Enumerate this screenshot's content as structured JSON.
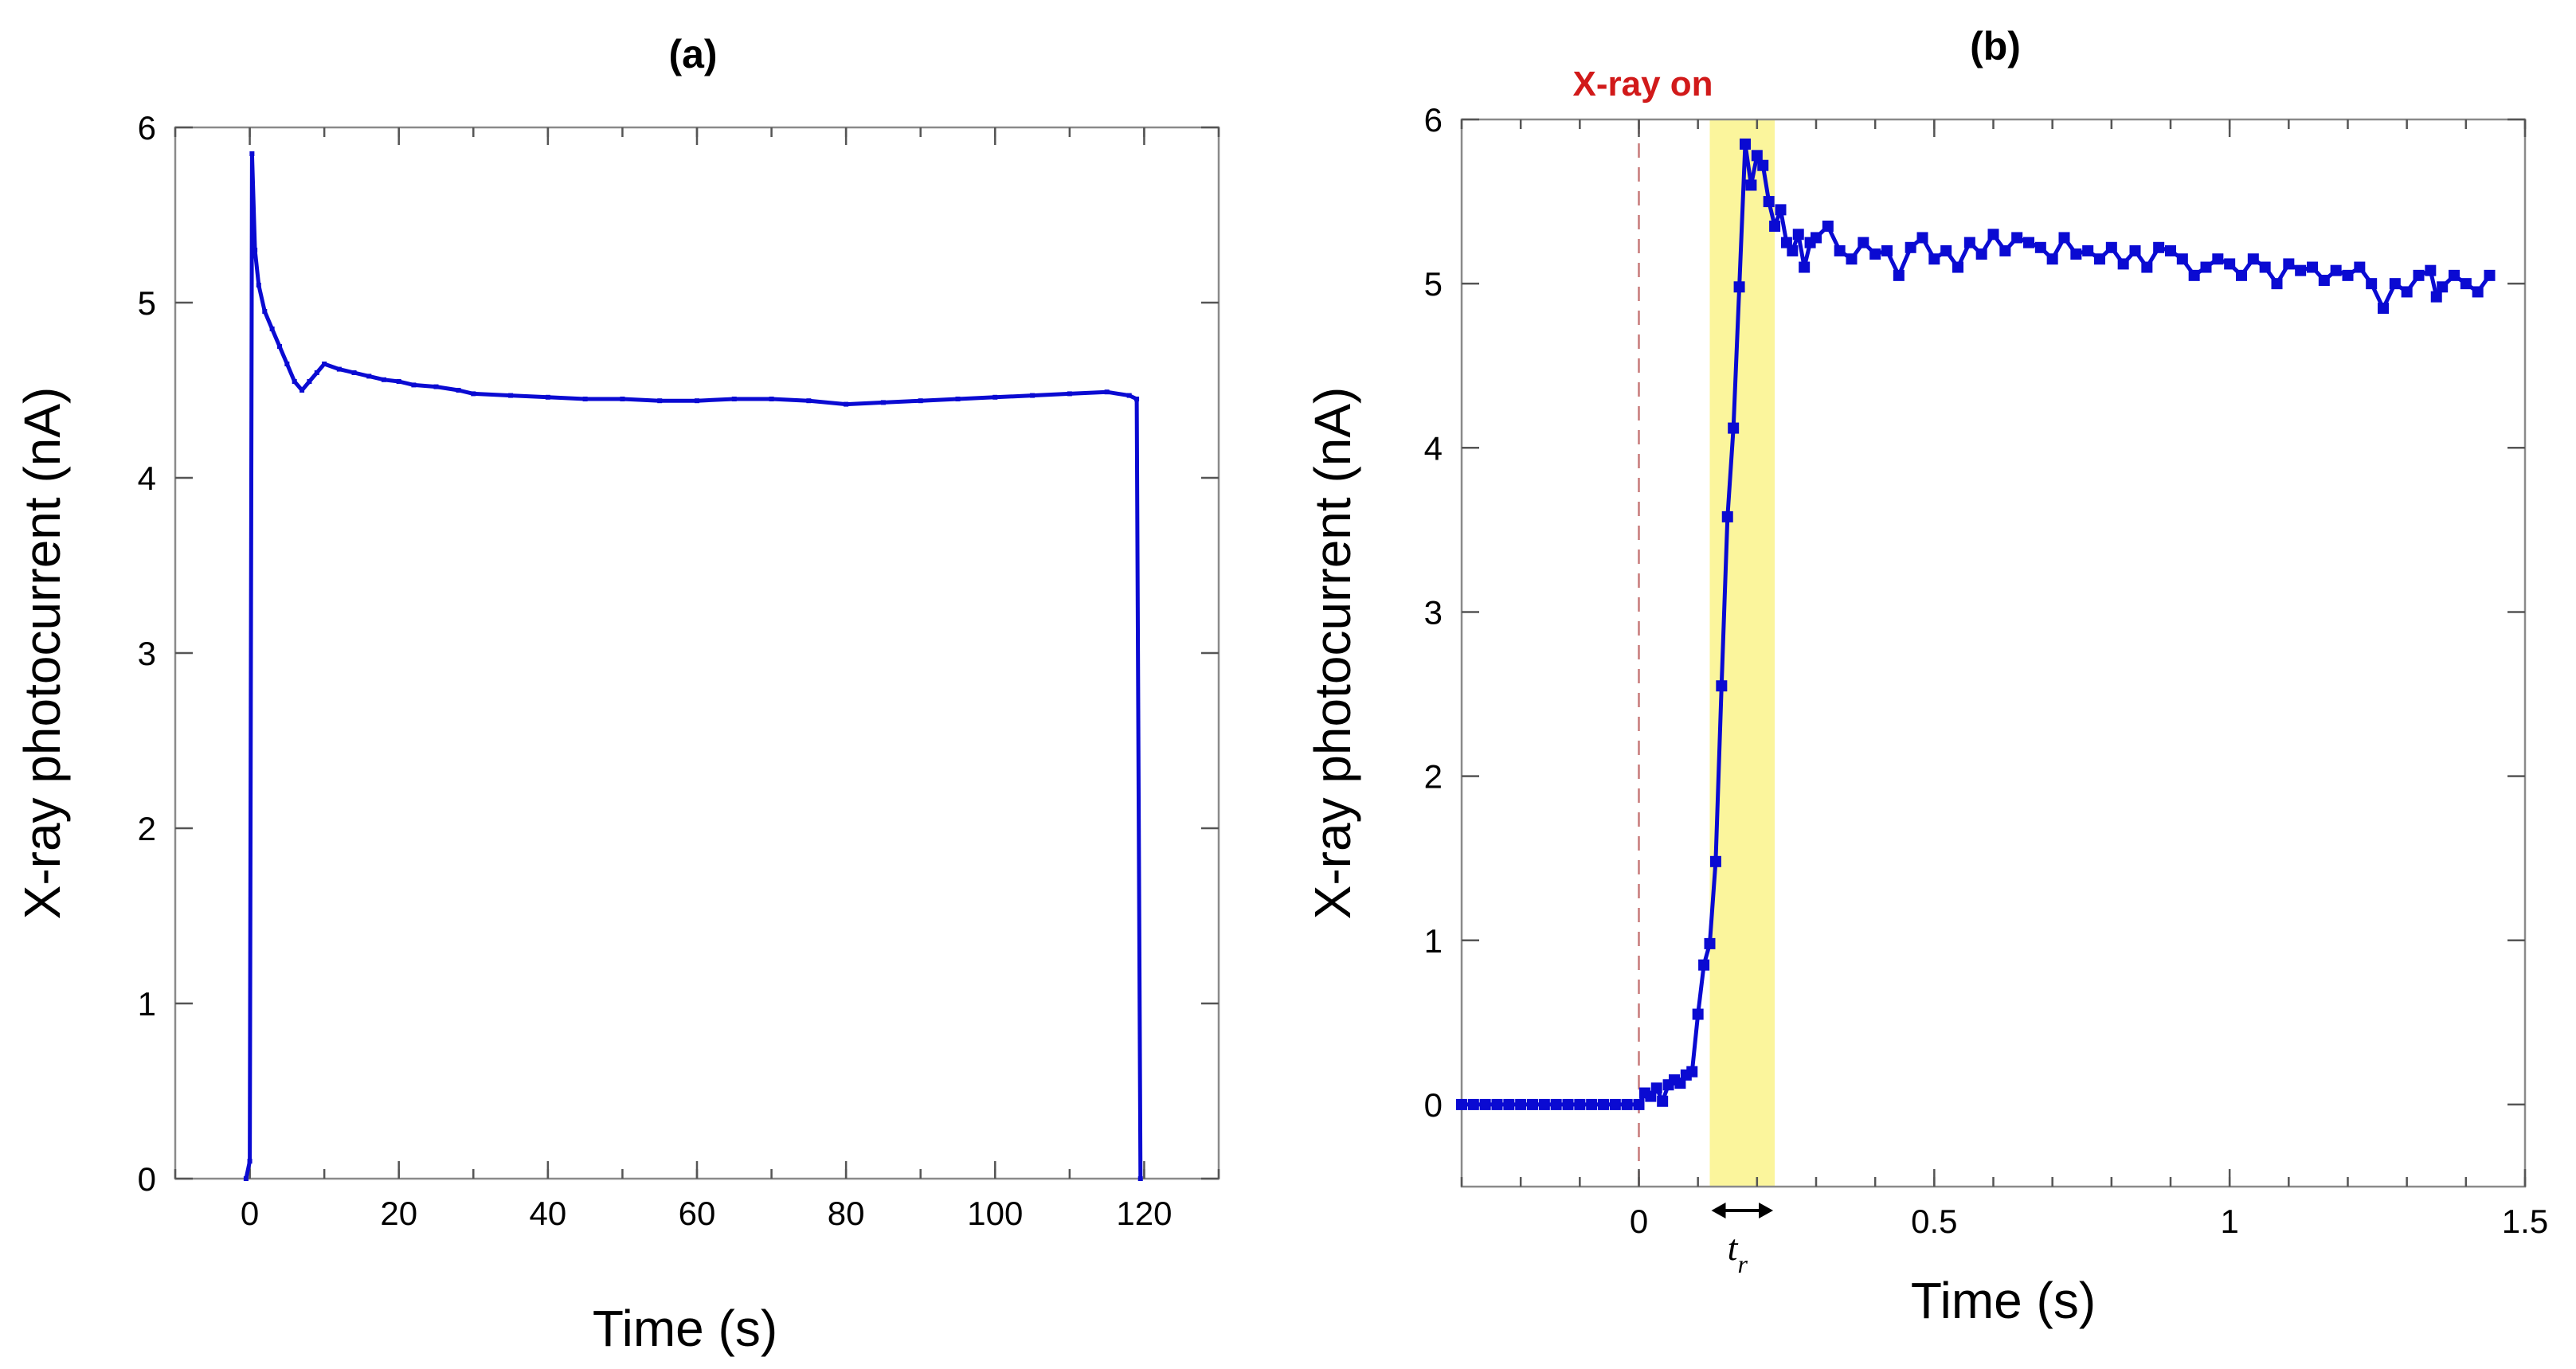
{
  "chart_data": [
    {
      "id": "a",
      "type": "line",
      "title": "(a)",
      "xlabel": "Time (s)",
      "ylabel": "X-ray photocurrent (nA)",
      "xlim": [
        -10,
        130
      ],
      "ylim": [
        0,
        6
      ],
      "xticks": [
        0,
        20,
        40,
        60,
        80,
        100,
        120
      ],
      "xtick_labels": [
        "0",
        "20",
        "40",
        "60",
        "80",
        "100",
        "120"
      ],
      "yticks": [
        0,
        1,
        2,
        3,
        4,
        5,
        6
      ],
      "ytick_labels": [
        "0",
        "1",
        "2",
        "3",
        "4",
        "5",
        "6"
      ],
      "grid": false,
      "series": [
        {
          "name": "photocurrent",
          "color": "#0a0ad2",
          "x": [
            -0.5,
            0,
            0.3,
            0.7,
            1.2,
            2,
            3,
            4,
            5,
            6,
            7,
            8,
            9,
            10,
            12,
            14,
            16,
            18,
            20,
            22,
            25,
            28,
            30,
            35,
            40,
            45,
            50,
            55,
            60,
            65,
            70,
            75,
            80,
            85,
            90,
            95,
            100,
            105,
            110,
            115,
            118,
            119,
            119.5
          ],
          "y": [
            0,
            0.1,
            5.85,
            5.3,
            5.1,
            4.95,
            4.85,
            4.75,
            4.65,
            4.55,
            4.5,
            4.55,
            4.6,
            4.65,
            4.62,
            4.6,
            4.58,
            4.56,
            4.55,
            4.53,
            4.52,
            4.5,
            4.48,
            4.47,
            4.46,
            4.45,
            4.45,
            4.44,
            4.44,
            4.45,
            4.45,
            4.44,
            4.42,
            4.43,
            4.44,
            4.45,
            4.46,
            4.47,
            4.48,
            4.49,
            4.47,
            4.45,
            0
          ]
        }
      ]
    },
    {
      "id": "b",
      "type": "line",
      "title": "(b)",
      "xlabel": "Time (s)",
      "ylabel": "X-ray photocurrent (nA)",
      "xlim": [
        -0.3,
        1.5
      ],
      "ylim": [
        -0.5,
        6
      ],
      "xticks": [
        0,
        0.5,
        1,
        1.5
      ],
      "xtick_labels": [
        "0",
        "0.5",
        "1",
        "1.5"
      ],
      "yticks": [
        0,
        1,
        2,
        3,
        4,
        5,
        6
      ],
      "ytick_labels": [
        "0",
        "1",
        "2",
        "3",
        "4",
        "5",
        "6"
      ],
      "grid": false,
      "annotations": {
        "xray_on_label": "X-ray on",
        "xray_on_time": 0,
        "rise_time_label": "t",
        "rise_time_subscript": "r",
        "rise_window": [
          0.12,
          0.23
        ],
        "highlight_color": "#fbf59c"
      },
      "series": [
        {
          "name": "photocurrent",
          "color": "#0a0ad2",
          "x": [
            -0.3,
            -0.28,
            -0.26,
            -0.24,
            -0.22,
            -0.2,
            -0.18,
            -0.16,
            -0.14,
            -0.12,
            -0.1,
            -0.08,
            -0.06,
            -0.04,
            -0.02,
            0,
            0.01,
            0.02,
            0.03,
            0.04,
            0.05,
            0.06,
            0.07,
            0.08,
            0.09,
            0.1,
            0.11,
            0.12,
            0.13,
            0.14,
            0.15,
            0.16,
            0.17,
            0.18,
            0.19,
            0.2,
            0.21,
            0.22,
            0.23,
            0.24,
            0.25,
            0.26,
            0.27,
            0.28,
            0.29,
            0.3,
            0.32,
            0.34,
            0.36,
            0.38,
            0.4,
            0.42,
            0.44,
            0.46,
            0.48,
            0.5,
            0.52,
            0.54,
            0.56,
            0.58,
            0.6,
            0.62,
            0.64,
            0.66,
            0.68,
            0.7,
            0.72,
            0.74,
            0.76,
            0.78,
            0.8,
            0.82,
            0.84,
            0.86,
            0.88,
            0.9,
            0.92,
            0.94,
            0.96,
            0.98,
            1.0,
            1.02,
            1.04,
            1.06,
            1.08,
            1.1,
            1.12,
            1.14,
            1.16,
            1.18,
            1.2,
            1.22,
            1.24,
            1.26,
            1.28,
            1.3,
            1.32,
            1.34,
            1.35,
            1.36,
            1.38,
            1.4,
            1.42,
            1.44
          ],
          "y": [
            0,
            0,
            0,
            0,
            0,
            0,
            0,
            0,
            0,
            0,
            0,
            0,
            0,
            0,
            0,
            0,
            0.07,
            0.05,
            0.1,
            0.02,
            0.12,
            0.15,
            0.13,
            0.18,
            0.2,
            0.55,
            0.85,
            0.98,
            1.48,
            2.55,
            3.58,
            4.12,
            4.98,
            5.85,
            5.6,
            5.78,
            5.72,
            5.5,
            5.35,
            5.45,
            5.25,
            5.2,
            5.3,
            5.1,
            5.25,
            5.28,
            5.35,
            5.2,
            5.15,
            5.25,
            5.18,
            5.2,
            5.05,
            5.22,
            5.28,
            5.15,
            5.2,
            5.1,
            5.25,
            5.18,
            5.3,
            5.2,
            5.28,
            5.25,
            5.22,
            5.15,
            5.28,
            5.18,
            5.2,
            5.15,
            5.22,
            5.12,
            5.2,
            5.1,
            5.22,
            5.2,
            5.15,
            5.05,
            5.1,
            5.15,
            5.12,
            5.05,
            5.15,
            5.1,
            5.0,
            5.12,
            5.08,
            5.1,
            5.02,
            5.08,
            5.05,
            5.1,
            5.0,
            4.85,
            5.0,
            4.95,
            5.05,
            5.08,
            4.92,
            4.98,
            5.05,
            5.0,
            4.95,
            5.05
          ]
        }
      ]
    }
  ]
}
